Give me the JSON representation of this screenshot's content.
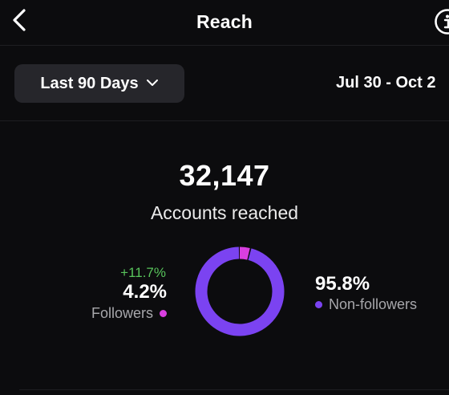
{
  "header": {
    "title": "Reach",
    "back_icon": "chevron-left-icon",
    "info_icon": "info-icon"
  },
  "toolbar": {
    "range_label": "Last 90 Days",
    "range_icon": "chevron-down-icon",
    "date_range": "Jul 30 - Oct 2"
  },
  "summary": {
    "total": "32,147",
    "total_label": "Accounts reached"
  },
  "followers": {
    "delta": "+11.7%",
    "percent": "4.2%",
    "label": "Followers",
    "share": 0.042,
    "color": "#d93fe0"
  },
  "non_followers": {
    "percent": "95.8%",
    "label": "Non-followers",
    "share": 0.958,
    "color": "#7b43f1"
  },
  "colors": {
    "background": "#0c0c0e",
    "button": "#26262b",
    "positive": "#58c35b"
  }
}
